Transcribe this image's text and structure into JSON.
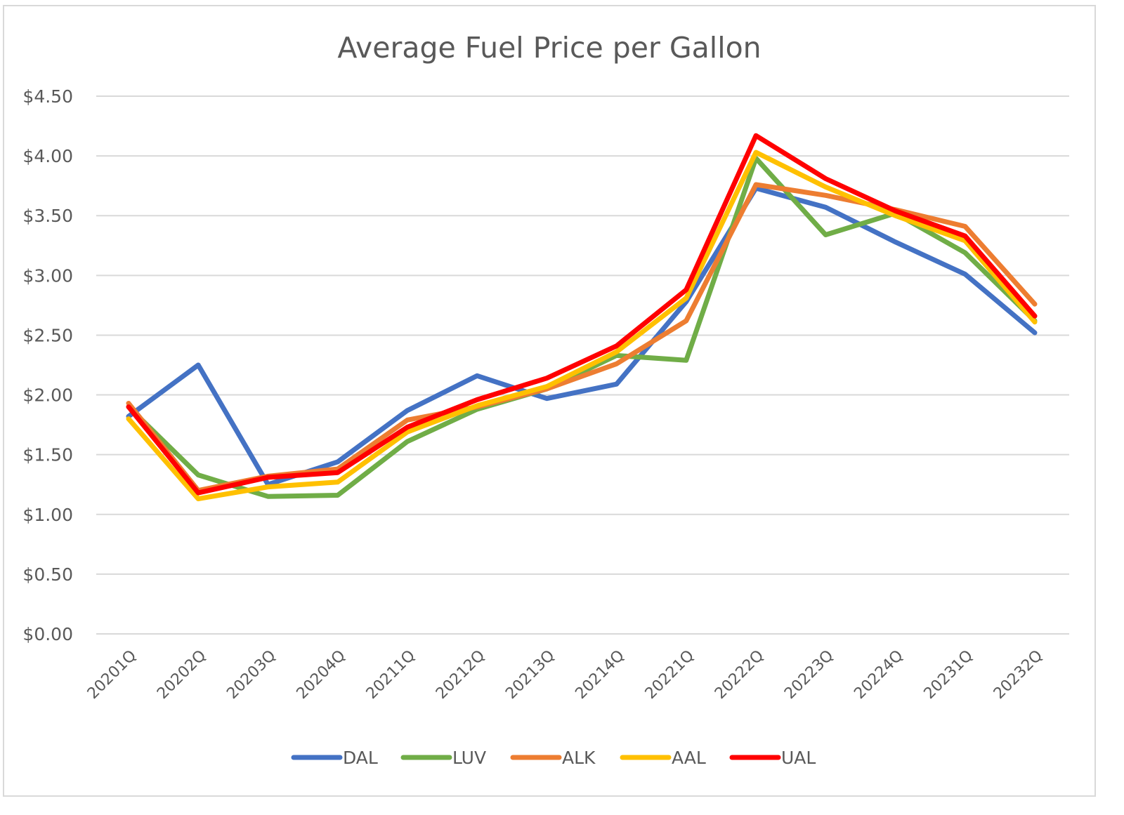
{
  "chart_data": {
    "type": "line",
    "title": "Average Fuel Price per Gallon",
    "xlabel": "",
    "ylabel": "",
    "ylim": [
      0,
      4.5
    ],
    "y_tick_step": 0.5,
    "y_tick_labels": [
      "$0.00",
      "$0.50",
      "$1.00",
      "$1.50",
      "$2.00",
      "$2.50",
      "$3.00",
      "$3.50",
      "$4.00",
      "$4.50"
    ],
    "grid": true,
    "legend_position": "bottom",
    "categories": [
      "20201Q",
      "20202Q",
      "20203Q",
      "20204Q",
      "20211Q",
      "20212Q",
      "20213Q",
      "20214Q",
      "20221Q",
      "20222Q",
      "20223Q",
      "20224Q",
      "20231Q",
      "20232Q"
    ],
    "series": [
      {
        "name": "DAL",
        "color": "#4472c4",
        "values": [
          1.82,
          2.25,
          1.25,
          1.44,
          1.87,
          2.16,
          1.97,
          2.09,
          2.78,
          3.73,
          3.57,
          3.28,
          3.01,
          2.52
        ]
      },
      {
        "name": "LUV",
        "color": "#70ad47",
        "values": [
          1.9,
          1.33,
          1.15,
          1.16,
          1.61,
          1.88,
          2.05,
          2.33,
          2.29,
          3.98,
          3.34,
          3.52,
          3.19,
          2.62
        ]
      },
      {
        "name": "ALK",
        "color": "#ed7d31",
        "values": [
          1.93,
          1.2,
          1.32,
          1.38,
          1.79,
          1.9,
          2.05,
          2.26,
          2.62,
          3.76,
          3.67,
          3.55,
          3.41,
          2.76
        ]
      },
      {
        "name": "AAL",
        "color": "#ffc000",
        "values": [
          1.8,
          1.13,
          1.23,
          1.27,
          1.69,
          1.91,
          2.07,
          2.36,
          2.81,
          4.03,
          3.74,
          3.5,
          3.29,
          2.61
        ]
      },
      {
        "name": "UAL",
        "color": "#ff0000",
        "values": [
          1.9,
          1.18,
          1.31,
          1.35,
          1.73,
          1.96,
          2.14,
          2.41,
          2.88,
          4.17,
          3.81,
          3.54,
          3.33,
          2.66
        ]
      }
    ]
  }
}
